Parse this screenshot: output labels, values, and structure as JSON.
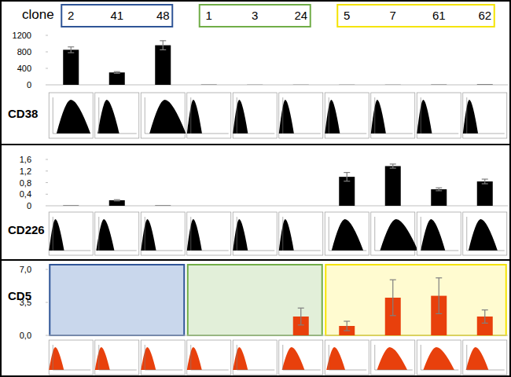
{
  "header": {
    "label": "clone",
    "groups": [
      {
        "clones": [
          "2",
          "41",
          "48"
        ],
        "color": "#2f5597",
        "fill": "#c9d7ec"
      },
      {
        "clones": [
          "1",
          "3",
          "24"
        ],
        "color": "#70ad47",
        "fill": "#e2efd9"
      },
      {
        "clones": [
          "5",
          "7",
          "61",
          "62"
        ],
        "color": "#f5e400",
        "fill": "#fffbd0"
      }
    ]
  },
  "chart_data": [
    {
      "type": "bar",
      "title": "CD38",
      "categories": [
        null,
        null,
        null,
        null,
        null,
        null,
        null,
        null,
        null,
        null
      ],
      "values": [
        850,
        300,
        960,
        5,
        3,
        3,
        3,
        3,
        5,
        8
      ],
      "errors": [
        70,
        20,
        110,
        0,
        0,
        0,
        0,
        0,
        0,
        0
      ],
      "color": "#000000",
      "ylim": [
        0,
        1200
      ],
      "yticks": [
        0,
        400,
        800,
        1200
      ],
      "tick_labels": "y",
      "grid": false
    },
    {
      "type": "bar",
      "title": "CD226",
      "categories": [
        null,
        null,
        null,
        null,
        null,
        null,
        null,
        null,
        null,
        null
      ],
      "values": [
        0.01,
        0.19,
        0.01,
        0,
        0,
        0,
        1.0,
        1.37,
        0.57,
        0.84
      ],
      "errors": [
        0,
        0.02,
        0,
        0,
        0,
        0,
        0.15,
        0.07,
        0.05,
        0.08
      ],
      "color": "#000000",
      "ylim": [
        0,
        1.6
      ],
      "yticks": [
        0,
        {
          "value": 0.4,
          "label": "0,4"
        },
        {
          "value": 0.8,
          "label": "0,8"
        },
        {
          "value": 1.2,
          "label": "1,2"
        },
        {
          "value": 1.6,
          "label": "1,6"
        }
      ],
      "tick_labels": "y",
      "grid": false
    },
    {
      "type": "bar",
      "title": "CD5",
      "categories": [
        null,
        null,
        null,
        null,
        null,
        null,
        null,
        null,
        null,
        null
      ],
      "values": [
        0,
        0,
        0,
        0,
        0,
        2.0,
        1.0,
        4.0,
        4.2,
        2.0
      ],
      "errors": [
        0,
        0,
        0,
        0,
        0,
        0.9,
        0.5,
        1.9,
        1.9,
        0.7
      ],
      "color": "#e8400c",
      "ylim": [
        0,
        7
      ],
      "yticks": [
        {
          "value": 0,
          "label": "0,0"
        },
        {
          "value": 3.5,
          "label": "3,5"
        },
        {
          "value": 7,
          "label": "7,0"
        }
      ],
      "tick_labels": "y",
      "grid": false
    }
  ]
}
